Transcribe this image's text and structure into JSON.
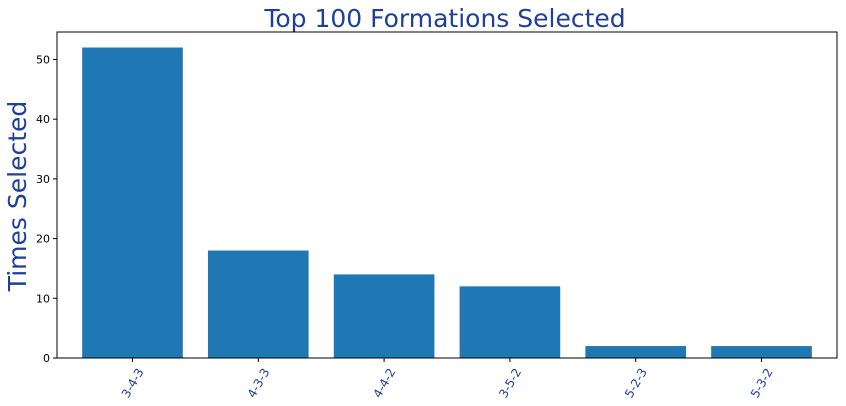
{
  "chart_data": {
    "type": "bar",
    "title": "Top 100 Formations Selected",
    "xlabel": "",
    "ylabel": "Times Selected",
    "categories": [
      "3-4-3",
      "4-3-3",
      "4-4-2",
      "3-5-2",
      "5-2-3",
      "5-3-2"
    ],
    "values": [
      52,
      18,
      14,
      12,
      2,
      2
    ],
    "ylim": [
      0,
      54.6
    ],
    "yticks": [
      0,
      10,
      20,
      30,
      40,
      50
    ],
    "grid": false,
    "legend": "none",
    "bar_color": "#1f77b4",
    "label_color": "#1f3f99",
    "x_tick_rotation": -60
  }
}
